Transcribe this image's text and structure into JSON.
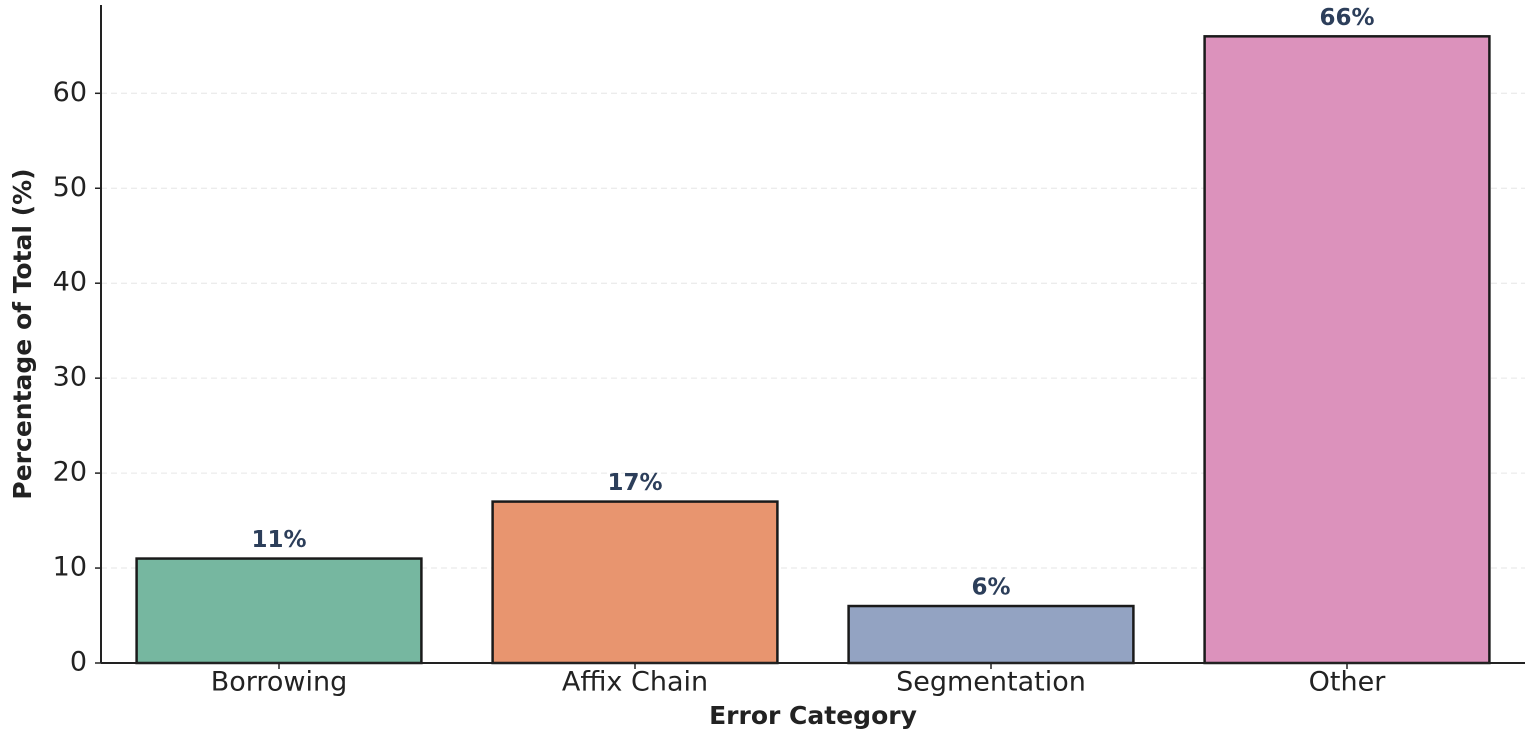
{
  "chart_data": {
    "type": "bar",
    "x_label": "Error Category",
    "y_label": "Percentage of Total (%)",
    "categories": [
      "Borrowing",
      "Affix Chain",
      "Segmentation",
      "Other"
    ],
    "values": [
      11,
      17,
      6,
      66
    ],
    "value_labels": [
      "11%",
      "17%",
      "6%",
      "66%"
    ],
    "colors": [
      "#76b7a0",
      "#e8956f",
      "#93a3c2",
      "#dc92bc"
    ],
    "ylim": [
      0,
      69.3
    ],
    "yticks": [
      0,
      10,
      20,
      30,
      40,
      50,
      60
    ],
    "grid": true
  }
}
